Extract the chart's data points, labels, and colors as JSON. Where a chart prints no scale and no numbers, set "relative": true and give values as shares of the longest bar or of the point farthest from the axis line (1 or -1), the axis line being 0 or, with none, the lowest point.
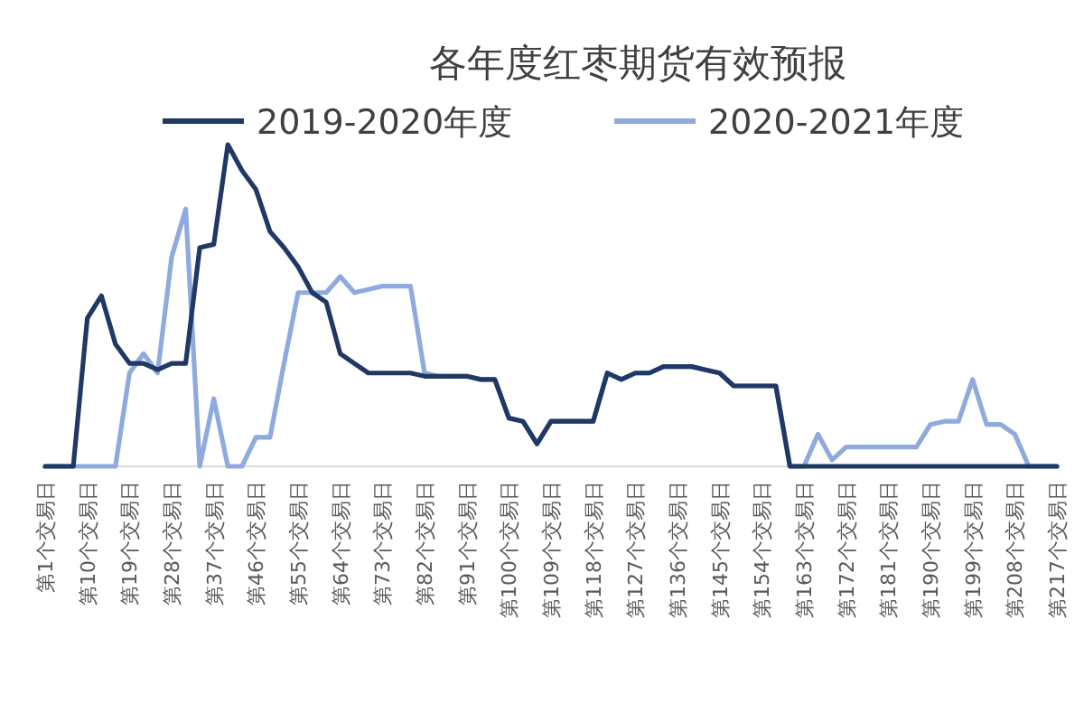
{
  "chart_data": {
    "type": "line",
    "title": "各年度红枣期货有效预报",
    "relative": true,
    "legend": "top",
    "marker": "none",
    "line_style": "solid",
    "categories": [
      "第1个交易日",
      null,
      null,
      "第10个交易日",
      null,
      null,
      "第19个交易日",
      null,
      null,
      "第28个交易日",
      null,
      null,
      "第37个交易日",
      null,
      null,
      "第46个交易日",
      null,
      null,
      "第55个交易日",
      null,
      null,
      "第64个交易日",
      null,
      null,
      "第73个交易日",
      null,
      null,
      "第82个交易日",
      null,
      null,
      "第91个交易日",
      null,
      null,
      "第100个交易日",
      null,
      null,
      "第109个交易日",
      null,
      null,
      "第118个交易日",
      null,
      null,
      "第127个交易日",
      null,
      null,
      "第136个交易日",
      null,
      null,
      "第145个交易日",
      null,
      null,
      "第154个交易日",
      null,
      null,
      "第163个交易日",
      null,
      null,
      "第172个交易日",
      null,
      null,
      "第181个交易日",
      null,
      null,
      "第190个交易日",
      null,
      null,
      "第199个交易日",
      null,
      null,
      "第208个交易日",
      null,
      null,
      "第217个交易日"
    ],
    "series": [
      {
        "name": "2019-2020年度",
        "color": "#203864",
        "values": [
          0,
          0,
          0,
          0.46,
          0.53,
          0.38,
          0.32,
          0.32,
          0.3,
          0.32,
          0.32,
          0.68,
          0.69,
          1,
          0.92,
          0.86,
          0.73,
          0.68,
          0.62,
          0.54,
          0.51,
          0.35,
          0.32,
          0.29,
          0.29,
          0.29,
          0.29,
          0.28,
          0.28,
          0.28,
          0.28,
          0.27,
          0.27,
          0.15,
          0.14,
          0.07,
          0.14,
          0.14,
          0.14,
          0.14,
          0.29,
          0.27,
          0.29,
          0.29,
          0.31,
          0.31,
          0.31,
          0.3,
          0.29,
          0.25,
          0.25,
          0.25,
          0.25,
          0,
          0,
          0,
          0,
          0,
          0,
          0,
          0,
          0,
          0,
          0,
          0,
          0,
          0,
          0,
          0,
          0,
          0,
          0,
          0
        ]
      },
      {
        "name": "2020-2021年度",
        "color": "#8faadc",
        "values": [
          0,
          0,
          0,
          0,
          0,
          0,
          0.29,
          0.35,
          0.29,
          0.65,
          0.8,
          0,
          0.21,
          0,
          0,
          0.09,
          0.09,
          0.32,
          0.54,
          0.54,
          0.54,
          0.59,
          0.54,
          0.55,
          0.56,
          0.56,
          0.56,
          0.29,
          0.28,
          0.28,
          0.28,
          0.27,
          0.27,
          0.15,
          0.14,
          0.07,
          0.14,
          0.14,
          0.14,
          0.14,
          0.29,
          0.27,
          0.29,
          0.29,
          0.31,
          0.31,
          0.31,
          0.3,
          0.29,
          0.25,
          0.25,
          0.25,
          0.25,
          0,
          0,
          0.1,
          0.02,
          0.06,
          0.06,
          0.06,
          0.06,
          0.06,
          0.06,
          0.13,
          0.14,
          0.14,
          0.27,
          0.13,
          0.13,
          0.1,
          0,
          0,
          0
        ]
      }
    ]
  }
}
